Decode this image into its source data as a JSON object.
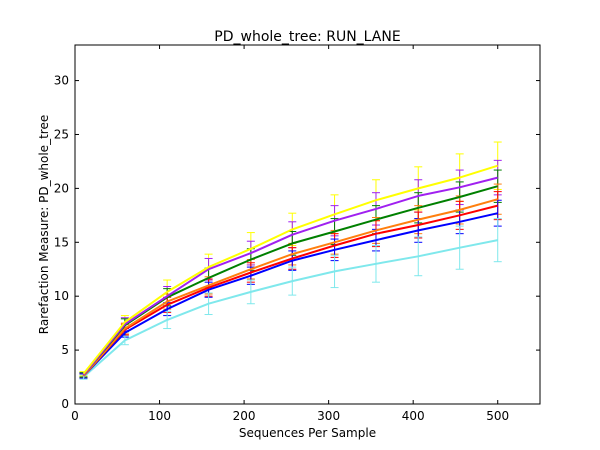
{
  "chart_data": {
    "type": "line",
    "title": "PD_whole_tree: RUN_LANE",
    "xlabel": "Sequences Per Sample",
    "ylabel": "Rarefaction Measure: PD_whole_tree",
    "xlim": [
      0,
      550
    ],
    "ylim": [
      0,
      33.3
    ],
    "xticks": [
      "0",
      "100",
      "200",
      "300",
      "400",
      "500"
    ],
    "xtick_values": [
      0,
      100,
      200,
      300,
      400,
      500
    ],
    "yticks": [
      "0",
      "5",
      "10",
      "15",
      "20",
      "25",
      "30"
    ],
    "ytick_values": [
      0,
      5,
      10,
      15,
      20,
      25,
      30
    ],
    "grid": false,
    "x": [
      10,
      59,
      109,
      158,
      208,
      257,
      307,
      356,
      406,
      455,
      500
    ],
    "series": [
      {
        "color": "#ffff00",
        "values": [
          2.8,
          7.6,
          10.4,
          12.7,
          14.4,
          16.2,
          17.6,
          18.9,
          20.0,
          21.0,
          22.1
        ],
        "errors": [
          0.2,
          0.6,
          1.1,
          1.2,
          1.5,
          1.5,
          1.8,
          1.9,
          2.0,
          2.2,
          2.2
        ]
      },
      {
        "color": "#a020f0",
        "values": [
          2.7,
          7.4,
          10.0,
          12.5,
          14.0,
          15.7,
          17.0,
          18.1,
          19.3,
          20.1,
          21.0
        ],
        "errors": [
          0.2,
          0.6,
          0.9,
          1.0,
          1.1,
          1.2,
          1.4,
          1.5,
          1.5,
          1.6,
          1.6
        ]
      },
      {
        "color": "#008000",
        "values": [
          2.7,
          7.3,
          9.9,
          11.7,
          13.4,
          14.9,
          16.0,
          17.1,
          18.2,
          19.2,
          20.2
        ],
        "errors": [
          0.2,
          0.6,
          0.8,
          0.9,
          1.0,
          1.1,
          1.2,
          1.3,
          1.4,
          1.4,
          1.5
        ]
      },
      {
        "color": "#ff7f0e",
        "values": [
          2.6,
          7.0,
          9.5,
          11.0,
          12.5,
          13.9,
          15.0,
          16.1,
          17.1,
          18.0,
          19.0
        ],
        "errors": [
          0.2,
          0.5,
          0.7,
          0.8,
          0.9,
          1.0,
          1.1,
          1.2,
          1.3,
          1.3,
          1.4
        ]
      },
      {
        "color": "#ff0000",
        "values": [
          2.6,
          6.9,
          9.2,
          10.8,
          12.2,
          13.5,
          14.7,
          15.8,
          16.6,
          17.5,
          18.4
        ],
        "errors": [
          0.2,
          0.5,
          0.7,
          0.8,
          0.9,
          1.0,
          1.1,
          1.2,
          1.2,
          1.3,
          1.3
        ]
      },
      {
        "color": "#0000ff",
        "values": [
          2.6,
          6.6,
          8.8,
          10.6,
          11.9,
          13.3,
          14.3,
          15.2,
          16.1,
          16.9,
          17.7
        ],
        "errors": [
          0.2,
          0.4,
          0.6,
          0.7,
          0.8,
          0.9,
          1.0,
          1.0,
          1.1,
          1.1,
          1.2
        ]
      },
      {
        "color": "#7fe8ec",
        "values": [
          2.5,
          5.9,
          7.8,
          9.3,
          10.4,
          11.4,
          12.3,
          13.0,
          13.7,
          14.5,
          15.2
        ],
        "errors": [
          0.2,
          0.4,
          0.8,
          1.0,
          1.1,
          1.3,
          1.5,
          1.7,
          1.8,
          2.0,
          2.0
        ]
      }
    ]
  }
}
